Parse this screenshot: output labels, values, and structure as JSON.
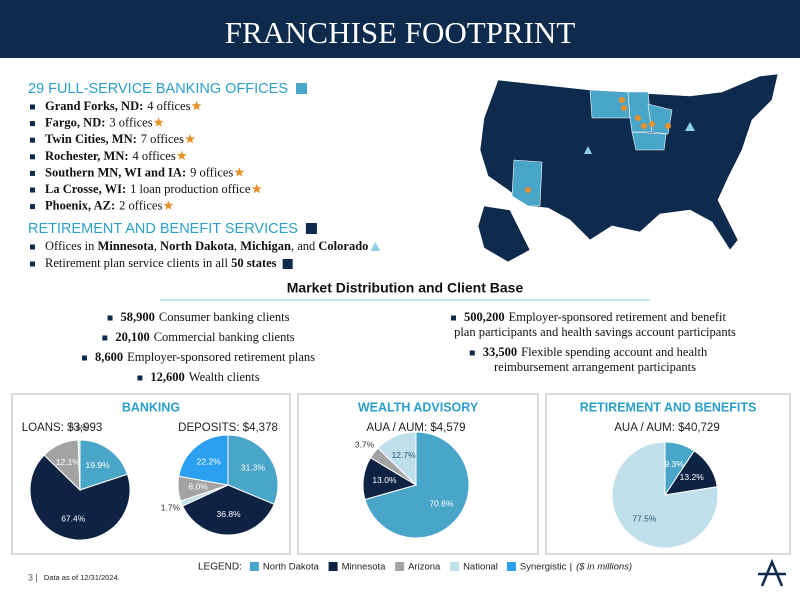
{
  "header": {
    "title": "FRANCHISE FOOTPRINT"
  },
  "offices": {
    "heading": "29 FULL-SERVICE BANKING OFFICES",
    "items": [
      {
        "place": "Grand Forks, ND:",
        "detail": "4 offices"
      },
      {
        "place": "Fargo, ND:",
        "detail": "3 offices"
      },
      {
        "place": "Twin Cities, MN:",
        "detail": "7 offices"
      },
      {
        "place": "Rochester, MN:",
        "detail": "4 offices"
      },
      {
        "place": "Southern MN, WI and IA:",
        "detail": "9 offices"
      },
      {
        "place": "La Crosse, WI:",
        "detail": "1 loan production office"
      },
      {
        "place": "Phoenix, AZ:",
        "detail": "2 offices"
      }
    ]
  },
  "retirement_services": {
    "heading": "RETIREMENT AND BENEFIT SERVICES",
    "items": [
      [
        {
          "text": "Offices in ",
          "bold": false
        },
        {
          "text": "Minnesota",
          "bold": true
        },
        {
          "text": ", ",
          "bold": false
        },
        {
          "text": "North Dakota",
          "bold": true
        },
        {
          "text": ", ",
          "bold": false
        },
        {
          "text": "Michigan",
          "bold": true
        },
        {
          "text": ", and ",
          "bold": false
        },
        {
          "text": "Colorado",
          "bold": true
        }
      ],
      [
        {
          "text": "Retirement plan service clients in all ",
          "bold": false
        },
        {
          "text": "50 states",
          "bold": true
        }
      ]
    ]
  },
  "market": {
    "title": "Market Distribution and Client Base",
    "left": [
      {
        "count": "58,900",
        "label": "Consumer banking clients"
      },
      {
        "count": "20,100",
        "label": "Commercial banking clients"
      },
      {
        "count": "8,600",
        "label": "Employer-sponsored retirement plans"
      },
      {
        "count": "12,600",
        "label": "Wealth clients"
      }
    ],
    "right": [
      {
        "count": "500,200",
        "lines": [
          "Employer-sponsored retirement and benefit",
          "plan participants and health savings account participants"
        ]
      },
      {
        "count": "33,500",
        "lines": [
          "Flexible spending account and health",
          "reimbursement arrangement participants"
        ]
      }
    ]
  },
  "panels": [
    {
      "title": "BANKING",
      "charts": [
        {
          "type": "pie",
          "title": "LOANS: $3,993",
          "categories": [
            "North Dakota",
            "Minnesota",
            "Arizona",
            "National"
          ],
          "values": [
            19.9,
            67.4,
            12.1,
            0.6
          ],
          "value_labels": [
            "19.9%",
            "67.4%",
            "12.1%",
            "0.6%"
          ]
        },
        {
          "type": "pie",
          "title": "DEPOSITS: $4,378",
          "categories": [
            "North Dakota",
            "Minnesota",
            "National",
            "Arizona",
            "Synergistic"
          ],
          "values": [
            31.3,
            36.8,
            1.7,
            8.0,
            22.2
          ],
          "value_labels": [
            "31.3%",
            "36.8%",
            "1.7%",
            "8.0%",
            "22.2%"
          ]
        }
      ]
    },
    {
      "title": "WEALTH ADVISORY",
      "charts": [
        {
          "type": "pie",
          "title": "AUA / AUM: $4,579",
          "categories": [
            "North Dakota",
            "Minnesota",
            "Arizona",
            "National"
          ],
          "values": [
            70.6,
            13.0,
            3.7,
            12.7
          ],
          "value_labels": [
            "70.6%",
            "13.0%",
            "3.7%",
            "12.7%"
          ]
        }
      ]
    },
    {
      "title": "RETIREMENT AND BENEFITS",
      "charts": [
        {
          "type": "pie",
          "title": "AUA / AUM: $40,729",
          "categories": [
            "North Dakota",
            "Minnesota",
            "National"
          ],
          "values": [
            9.3,
            13.2,
            77.5
          ],
          "value_labels": [
            "9.3%",
            "13.2%",
            "77.5%"
          ]
        }
      ]
    }
  ],
  "legend": {
    "label": "LEGEND:",
    "items": [
      {
        "name": "North Dakota",
        "color": "#4aa6c9"
      },
      {
        "name": "Minnesota",
        "color": "#0e2344"
      },
      {
        "name": "Arizona",
        "color": "#a3a3a3"
      },
      {
        "name": "National",
        "color": "#bfdfea"
      },
      {
        "name": "Synergistic",
        "color": "#2b9ff0"
      }
    ],
    "separator": "|",
    "note": "($ in millions)"
  },
  "footer": {
    "page": "3 |",
    "date": "Data as of 12/31/2024."
  }
}
